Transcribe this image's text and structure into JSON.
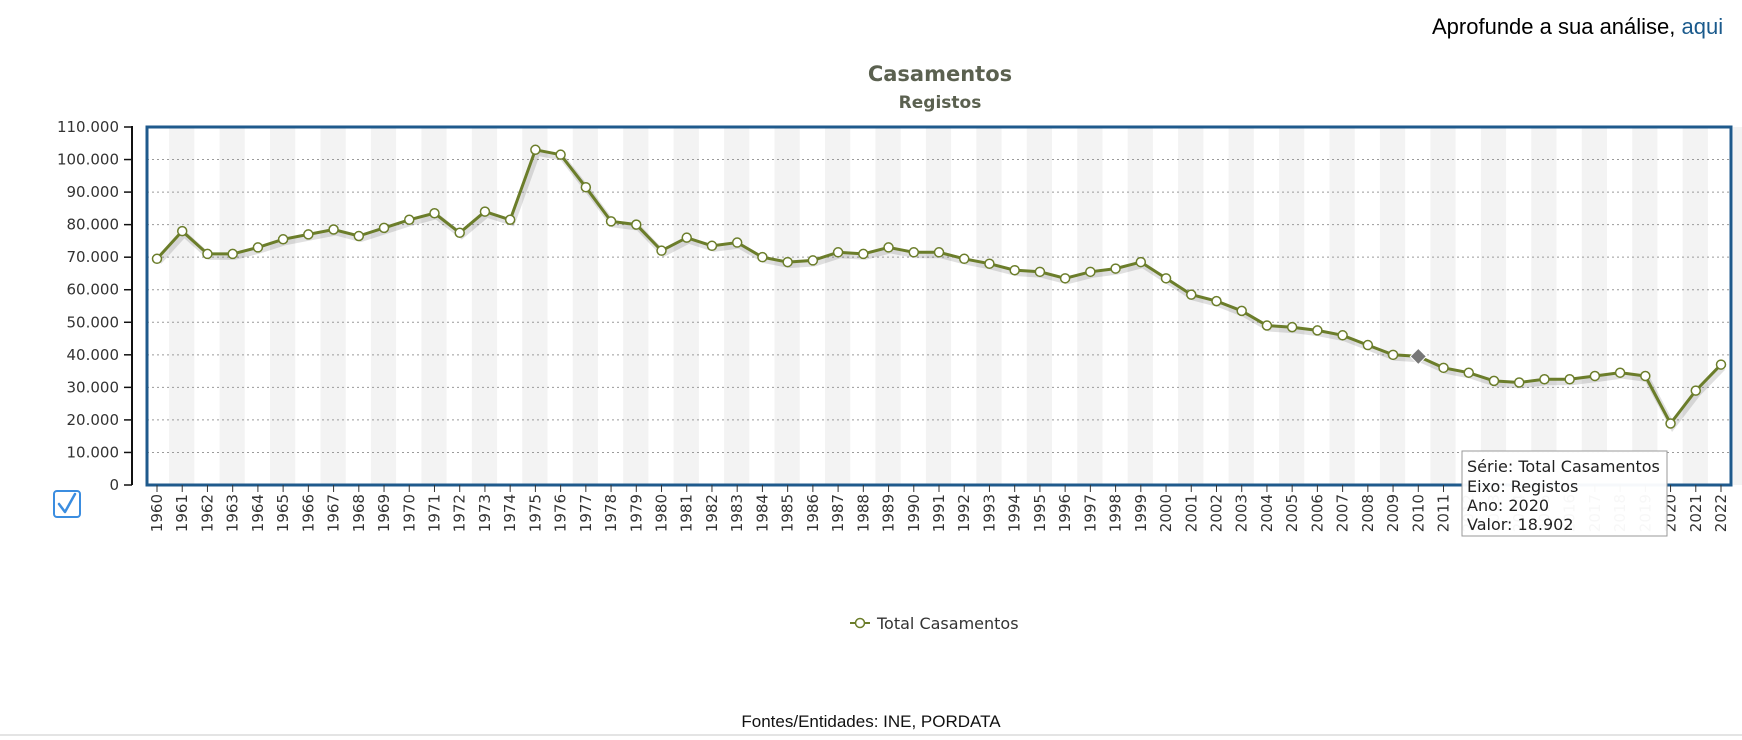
{
  "header": {
    "prefix": "Aprofunde a sua análise,",
    "link_label": "aqui"
  },
  "source_text": "Fontes/Entidades: INE, PORDATA",
  "colors": {
    "series": "#6b7d2a",
    "plot_border": "#1f5a8c",
    "band": "#f3f3f3",
    "hover": "#777777"
  },
  "checkbox_icon": "checkmark-icon",
  "tooltip": {
    "line1": "Série: Total Casamentos",
    "line2": "Eixo: Registos",
    "line3": "Ano: 2020",
    "line4": "Valor: 18.902"
  },
  "chart_data": {
    "type": "line",
    "title": "Casamentos",
    "subtitle": "Registos",
    "xlabel": "",
    "ylabel": "",
    "ylim": [
      0,
      110000
    ],
    "yticks": [
      0,
      10000,
      20000,
      30000,
      40000,
      50000,
      60000,
      70000,
      80000,
      90000,
      100000,
      110000
    ],
    "ytick_labels": [
      "0",
      "10.000",
      "20.000",
      "30.000",
      "40.000",
      "50.000",
      "60.000",
      "70.000",
      "80.000",
      "90.000",
      "100.000",
      "110.000"
    ],
    "grid": true,
    "legend": "bottom-center",
    "x": [
      "1960",
      "1961",
      "1962",
      "1963",
      "1964",
      "1965",
      "1966",
      "1967",
      "1968",
      "1969",
      "1970",
      "1971",
      "1972",
      "1973",
      "1974",
      "1975",
      "1976",
      "1977",
      "1978",
      "1979",
      "1980",
      "1981",
      "1982",
      "1983",
      "1984",
      "1985",
      "1986",
      "1987",
      "1988",
      "1989",
      "1990",
      "1991",
      "1992",
      "1993",
      "1994",
      "1995",
      "1996",
      "1997",
      "1998",
      "1999",
      "2000",
      "2001",
      "2002",
      "2003",
      "2004",
      "2005",
      "2006",
      "2007",
      "2008",
      "2009",
      "2010",
      "2011",
      "2012",
      "2013",
      "2014",
      "2015",
      "2016",
      "2017",
      "2018",
      "2019",
      "2020",
      "2021",
      "2022"
    ],
    "series": [
      {
        "name": "Total Casamentos",
        "values": [
          69500,
          78000,
          71000,
          71000,
          73000,
          75500,
          77000,
          78500,
          76500,
          79000,
          81500,
          83500,
          77500,
          84000,
          81500,
          103000,
          101500,
          91500,
          81000,
          80000,
          72000,
          76000,
          73500,
          74500,
          70000,
          68500,
          69000,
          71500,
          71000,
          73000,
          71500,
          71500,
          69500,
          68000,
          66000,
          65500,
          63500,
          65500,
          66500,
          68500,
          63500,
          58500,
          56500,
          53500,
          49000,
          48500,
          47500,
          46000,
          43000,
          40000,
          39500,
          36000,
          34500,
          32000,
          31500,
          32500,
          32500,
          33500,
          34500,
          33500,
          18902,
          29000,
          37000
        ]
      }
    ],
    "highlight_index": 50,
    "tooltip_index": 60
  }
}
